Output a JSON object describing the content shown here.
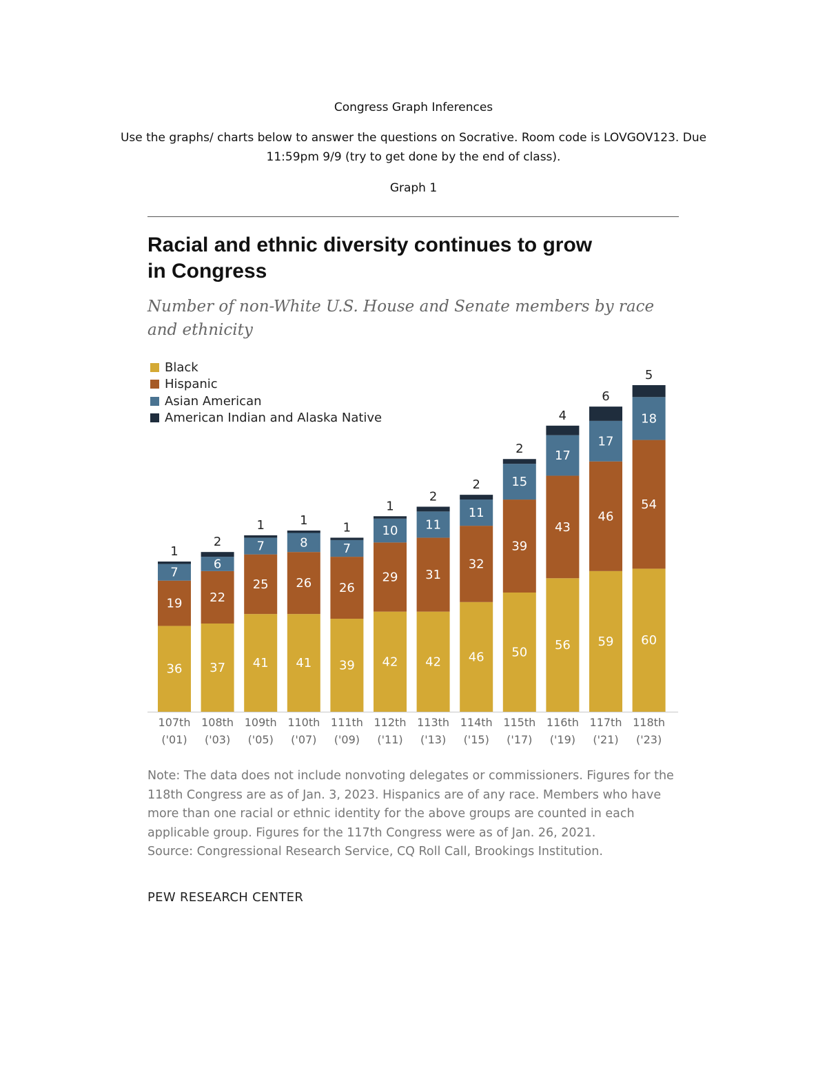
{
  "document": {
    "title": "Congress Graph Inferences",
    "instructions_line1": "Use the graphs/ charts below to answer the questions on Socrative. Room code is LOVGOV123. Due",
    "instructions_line2": "11:59pm 9/9 (try to get done by the end of class).",
    "graph_label": "Graph 1"
  },
  "chart_data": {
    "type": "bar",
    "stacked": true,
    "title": "Racial and ethnic diversity continues to grow in Congress",
    "title_line1": "Racial and ethnic diversity continues to grow",
    "title_line2": "in Congress",
    "subtitle_line1": "Number of non-White U.S. House and Senate members by race",
    "subtitle_line2": "and ethnicity",
    "categories": [
      "107th",
      "108th",
      "109th",
      "110th",
      "111th",
      "112th",
      "113th",
      "114th",
      "115th",
      "116th",
      "117th",
      "118th"
    ],
    "category_years": [
      "('01)",
      "('03)",
      "('05)",
      "('07)",
      "('09)",
      "('11)",
      "('13)",
      "('15)",
      "('17)",
      "('19)",
      "('21)",
      "('23)"
    ],
    "series": [
      {
        "name": "Black",
        "color": "#D4A934",
        "values": [
          36,
          37,
          41,
          41,
          39,
          42,
          42,
          46,
          50,
          56,
          59,
          60
        ]
      },
      {
        "name": "Hispanic",
        "color": "#A65A26",
        "values": [
          19,
          22,
          25,
          26,
          26,
          29,
          31,
          32,
          39,
          43,
          46,
          54
        ]
      },
      {
        "name": "Asian American",
        "color": "#4A7391",
        "values": [
          7,
          6,
          7,
          8,
          7,
          10,
          11,
          11,
          15,
          17,
          17,
          18
        ]
      },
      {
        "name": "American Indian and Alaska Native",
        "color": "#1F2D3D",
        "values": [
          1,
          2,
          1,
          1,
          1,
          1,
          2,
          2,
          2,
          4,
          6,
          5
        ]
      }
    ],
    "legend_position": "top-left",
    "grid": false,
    "note": "Note: The data does not include nonvoting delegates or commissioners. Figures for the 118th Congress are as of Jan. 3, 2023. Hispanics are of any race. Members who have more than one racial or ethnic identity for the above groups are counted in each applicable group. Figures for the 117th Congress were as of Jan. 26, 2021.",
    "source": "Source: Congressional Research Service, CQ Roll Call, Brookings Institution.",
    "organization": "PEW RESEARCH CENTER"
  }
}
